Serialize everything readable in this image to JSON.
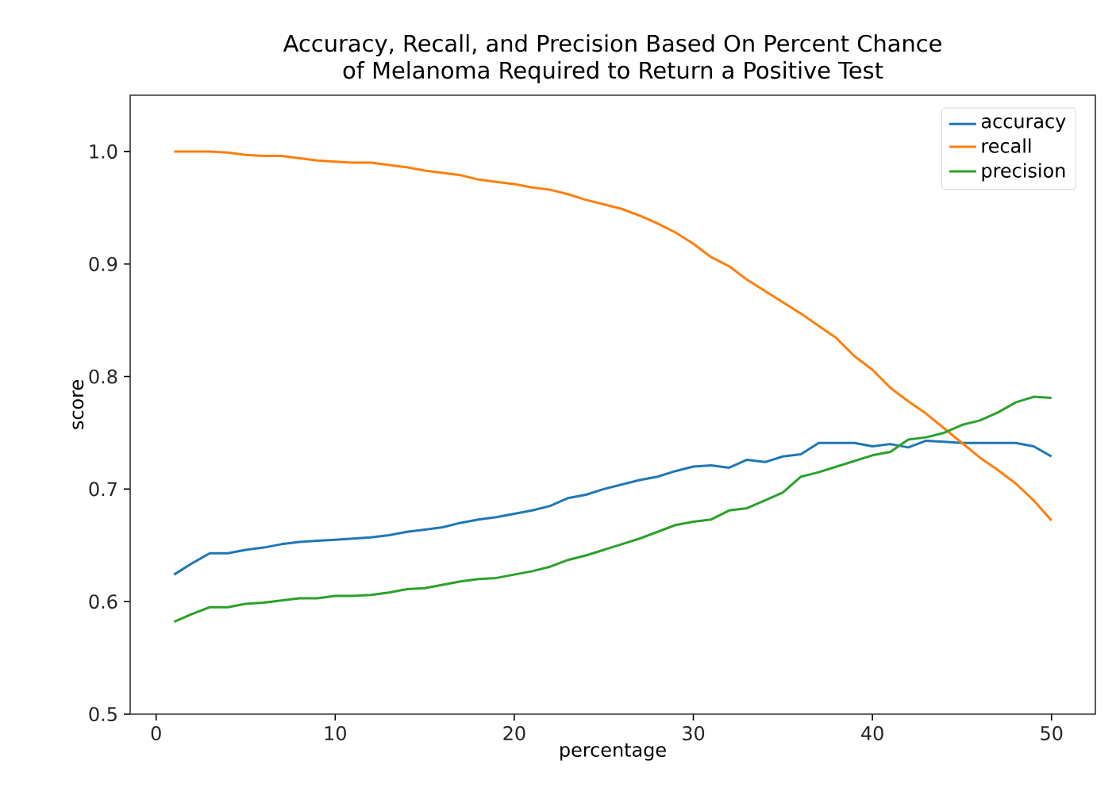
{
  "chart_data": {
    "type": "line",
    "title": "Accuracy, Recall, and Precision Based On Percent Chance\nof Melanoma Required to Return a Positive Test",
    "xlabel": "percentage",
    "ylabel": "score",
    "x": [
      1,
      2,
      3,
      4,
      5,
      6,
      7,
      8,
      9,
      10,
      11,
      12,
      13,
      14,
      15,
      16,
      17,
      18,
      19,
      20,
      21,
      22,
      23,
      24,
      25,
      26,
      27,
      28,
      29,
      30,
      31,
      32,
      33,
      34,
      35,
      36,
      37,
      38,
      39,
      40,
      41,
      42,
      43,
      44,
      45,
      46,
      47,
      48,
      49,
      50
    ],
    "xlim": [
      -1.45,
      52.45
    ],
    "xticks": [
      0,
      10,
      20,
      30,
      40,
      50
    ],
    "ylim": [
      0.5,
      1.05
    ],
    "yticks": [
      {
        "value": 0.5,
        "label": "0.5"
      },
      {
        "value": 0.6,
        "label": "0.6"
      },
      {
        "value": 0.7,
        "label": "0.7"
      },
      {
        "value": 0.8,
        "label": "0.8"
      },
      {
        "value": 0.9,
        "label": "0.9"
      },
      {
        "value": 1.0,
        "label": "1.0"
      }
    ],
    "legend": "top right",
    "grid": false,
    "marker": "none",
    "line_style": "solid",
    "series": [
      {
        "name": "accuracy",
        "color": "#1f77b4",
        "values": [
          0.624,
          0.634,
          0.643,
          0.643,
          0.646,
          0.648,
          0.651,
          0.653,
          0.654,
          0.655,
          0.656,
          0.657,
          0.659,
          0.662,
          0.664,
          0.666,
          0.67,
          0.673,
          0.675,
          0.678,
          0.681,
          0.685,
          0.692,
          0.695,
          0.7,
          0.704,
          0.708,
          0.711,
          0.716,
          0.72,
          0.721,
          0.719,
          0.726,
          0.724,
          0.729,
          0.731,
          0.741,
          0.741,
          0.741,
          0.738,
          0.74,
          0.737,
          0.743,
          0.742,
          0.741,
          0.741,
          0.741,
          0.741,
          0.738,
          0.729
        ]
      },
      {
        "name": "recall",
        "color": "#ff7f0e",
        "values": [
          1.0,
          1.0,
          1.0,
          0.999,
          0.997,
          0.996,
          0.996,
          0.994,
          0.992,
          0.991,
          0.99,
          0.99,
          0.988,
          0.986,
          0.983,
          0.981,
          0.979,
          0.975,
          0.973,
          0.971,
          0.968,
          0.966,
          0.962,
          0.957,
          0.953,
          0.949,
          0.943,
          0.936,
          0.928,
          0.918,
          0.906,
          0.898,
          0.886,
          0.876,
          0.866,
          0.856,
          0.845,
          0.834,
          0.818,
          0.806,
          0.79,
          0.778,
          0.767,
          0.754,
          0.741,
          0.728,
          0.717,
          0.705,
          0.69,
          0.672
        ]
      },
      {
        "name": "precision",
        "color": "#2ca02c",
        "values": [
          0.582,
          0.589,
          0.595,
          0.595,
          0.598,
          0.599,
          0.601,
          0.603,
          0.603,
          0.605,
          0.605,
          0.606,
          0.608,
          0.611,
          0.612,
          0.615,
          0.618,
          0.62,
          0.621,
          0.624,
          0.627,
          0.631,
          0.637,
          0.641,
          0.646,
          0.651,
          0.656,
          0.662,
          0.668,
          0.671,
          0.673,
          0.681,
          0.683,
          0.69,
          0.697,
          0.711,
          0.715,
          0.72,
          0.725,
          0.73,
          0.733,
          0.744,
          0.746,
          0.75,
          0.757,
          0.761,
          0.768,
          0.777,
          0.782,
          0.781
        ]
      }
    ]
  }
}
